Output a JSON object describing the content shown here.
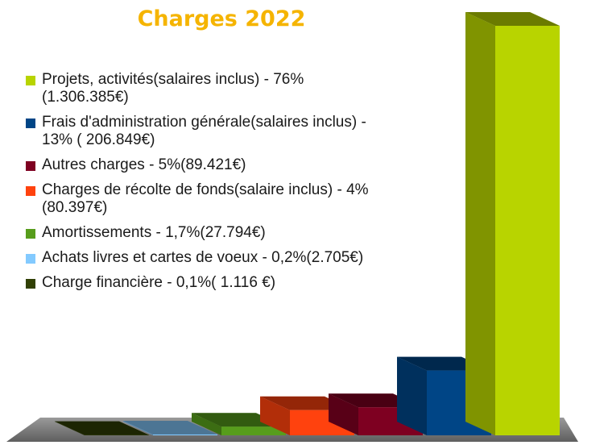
{
  "chart_data": {
    "type": "bar",
    "title": "Charges 2022",
    "categories": [
      "Projets, activités(salaires inclus) - 76%(1.306.385€)",
      "Frais d'administration générale(salaires inclus) - 13% ( 206.849€)",
      "Autres charges - 5%(89.421€)",
      "Charges de récolte de fonds(salaire inclus) - 4%(80.397€)",
      "Amortissements - 1,7%(27.794€)",
      "Achats livres et cartes de voeux - 0,2%(2.705€)",
      "Charge financière - 0,1%( 1.116 €)"
    ],
    "values": [
      1306385,
      206849,
      89421,
      80397,
      27794,
      2705,
      1116
    ],
    "colors": [
      "#b8d400",
      "#004586",
      "#7e0021",
      "#ff420e",
      "#579d1c",
      "#83caff",
      "#314004"
    ]
  }
}
